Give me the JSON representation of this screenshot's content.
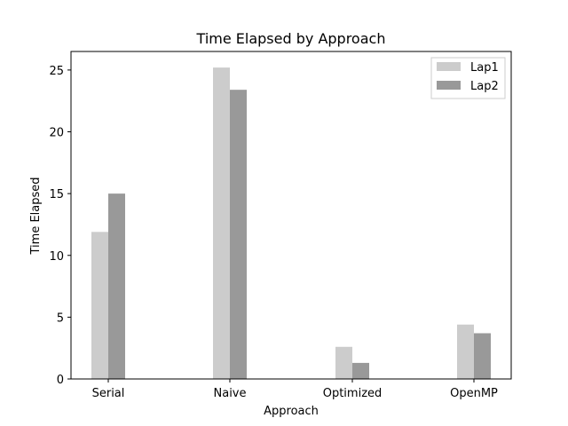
{
  "chart_data": {
    "type": "bar",
    "title": "Time Elapsed by Approach",
    "xlabel": "Approach",
    "ylabel": "Time Elapsed",
    "categories": [
      "Serial",
      "Naive",
      "Optimized",
      "OpenMP"
    ],
    "series": [
      {
        "name": "Lap1",
        "values": [
          11.9,
          25.2,
          2.6,
          4.4
        ],
        "color": "#cccccc"
      },
      {
        "name": "Lap2",
        "values": [
          15.0,
          23.4,
          1.3,
          3.7
        ],
        "color": "#999999"
      }
    ],
    "ylim": [
      0,
      26.5
    ],
    "yticks": [
      "0",
      "5",
      "10",
      "15",
      "20",
      "25"
    ],
    "grid": false,
    "legend": "top-right"
  }
}
